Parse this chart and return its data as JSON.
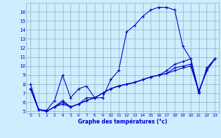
{
  "background_color": "#cceeff",
  "grid_color": "#99aabb",
  "line_color": "#0000cc",
  "xlabel": "Graphe des températures (°c)",
  "xlabel_color": "#0000cc",
  "xlim": [
    -0.5,
    23.5
  ],
  "ylim": [
    4.8,
    17.0
  ],
  "yticks": [
    5,
    6,
    7,
    8,
    9,
    10,
    11,
    12,
    13,
    14,
    15,
    16
  ],
  "xticks": [
    0,
    1,
    2,
    3,
    4,
    5,
    6,
    7,
    8,
    9,
    10,
    11,
    12,
    13,
    14,
    15,
    16,
    17,
    18,
    19,
    20,
    21,
    22,
    23
  ],
  "series": [
    {
      "x": [
        0,
        1,
        2,
        3,
        4,
        5,
        6,
        7,
        8,
        9,
        10,
        11,
        12,
        13,
        14,
        15,
        16,
        17,
        18,
        19,
        20,
        21,
        22,
        23
      ],
      "y": [
        8.0,
        5.2,
        5.1,
        6.2,
        9.0,
        6.5,
        7.5,
        7.8,
        6.5,
        6.5,
        8.5,
        9.5,
        13.8,
        14.5,
        15.5,
        16.2,
        16.5,
        16.5,
        16.2,
        12.2,
        10.8,
        7.0,
        9.8,
        10.8
      ]
    },
    {
      "x": [
        0,
        1,
        2,
        3,
        4,
        5,
        6,
        7,
        8,
        9,
        10,
        11,
        12,
        13,
        14,
        15,
        16,
        17,
        18,
        19,
        20,
        21,
        22,
        23
      ],
      "y": [
        7.5,
        5.2,
        5.0,
        5.5,
        6.2,
        5.5,
        5.8,
        6.5,
        6.5,
        7.0,
        7.5,
        7.8,
        8.0,
        8.2,
        8.5,
        8.8,
        9.0,
        9.5,
        10.2,
        10.5,
        10.8,
        7.2,
        9.5,
        10.8
      ]
    },
    {
      "x": [
        0,
        1,
        2,
        3,
        4,
        5,
        6,
        7,
        8,
        9,
        10,
        11,
        12,
        13,
        14,
        15,
        16,
        17,
        18,
        19,
        20,
        21,
        22,
        23
      ],
      "y": [
        7.5,
        5.2,
        5.0,
        5.5,
        6.0,
        5.5,
        5.8,
        6.2,
        6.5,
        7.0,
        7.5,
        7.8,
        8.0,
        8.2,
        8.5,
        8.8,
        9.0,
        9.2,
        9.8,
        10.0,
        10.2,
        7.2,
        9.5,
        10.8
      ]
    },
    {
      "x": [
        0,
        1,
        2,
        3,
        4,
        5,
        6,
        7,
        8,
        9,
        10,
        11,
        12,
        13,
        14,
        15,
        16,
        17,
        18,
        19,
        20,
        21,
        22,
        23
      ],
      "y": [
        7.5,
        5.2,
        5.0,
        5.5,
        5.8,
        5.5,
        5.8,
        6.2,
        6.5,
        7.0,
        7.5,
        7.8,
        8.0,
        8.2,
        8.5,
        8.8,
        9.0,
        9.2,
        9.5,
        9.8,
        10.0,
        7.2,
        9.5,
        10.8
      ]
    }
  ],
  "marker": "+",
  "markersize": 3.5,
  "linewidth": 0.8
}
